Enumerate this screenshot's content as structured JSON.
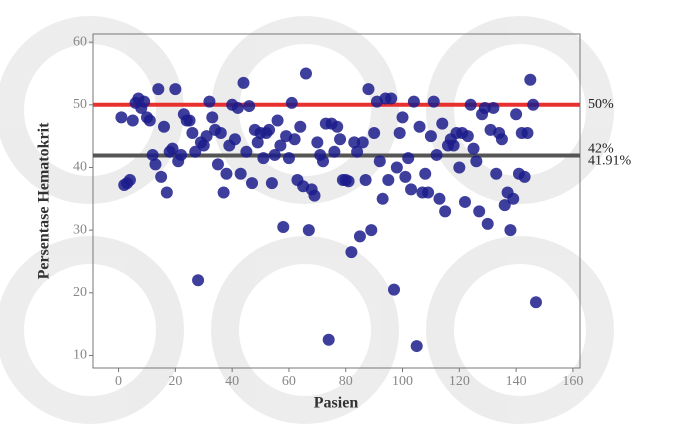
{
  "chart_data": {
    "type": "scatter",
    "xlabel": "Pasien",
    "ylabel": "Persentase Hematokrit",
    "xlim": [
      -9,
      162.5
    ],
    "ylim": [
      8,
      61.3
    ],
    "xticks": [
      0,
      20,
      40,
      60,
      80,
      100,
      120,
      140,
      160
    ],
    "yticks": [
      10,
      20,
      30,
      40,
      50,
      60
    ],
    "grid": false,
    "color": "#1c1c8c",
    "hlines": [
      {
        "value": 50,
        "labels": [
          "50%"
        ],
        "color": "#e8312f"
      },
      {
        "value": 41.91,
        "labels": [
          "42%",
          "41.91%"
        ],
        "color": "#555555"
      }
    ],
    "x": [
      1,
      2,
      3,
      4,
      5,
      6,
      7,
      8,
      9,
      10,
      11,
      12,
      13,
      14,
      15,
      16,
      17,
      18,
      19,
      20,
      21,
      22,
      23,
      24,
      25,
      26,
      27,
      28,
      29,
      30,
      31,
      32,
      33,
      34,
      35,
      36,
      37,
      38,
      39,
      40,
      41,
      42,
      43,
      44,
      45,
      46,
      47,
      48,
      49,
      50,
      51,
      52,
      53,
      54,
      55,
      56,
      57,
      58,
      59,
      60,
      61,
      62,
      63,
      64,
      65,
      66,
      67,
      68,
      69,
      70,
      71,
      72,
      73,
      74,
      75,
      76,
      77,
      78,
      79,
      80,
      81,
      82,
      83,
      84,
      85,
      86,
      87,
      88,
      89,
      90,
      91,
      92,
      93,
      94,
      95,
      96,
      97,
      98,
      99,
      100,
      101,
      102,
      103,
      104,
      105,
      106,
      107,
      108,
      109,
      110,
      111,
      112,
      113,
      114,
      115,
      116,
      117,
      118,
      119,
      120,
      121,
      122,
      123,
      124,
      125,
      126,
      127,
      128,
      129,
      130,
      131,
      132,
      133,
      134,
      135,
      136,
      137,
      138,
      139,
      140,
      141,
      142,
      143,
      144,
      145,
      146,
      147
    ],
    "values": [
      48,
      37.2,
      37.5,
      38,
      47.5,
      50.3,
      51,
      49.5,
      50.5,
      48,
      47.5,
      42,
      40.5,
      52.5,
      38.5,
      46.5,
      36,
      42.5,
      43,
      52.5,
      41,
      42,
      48.5,
      47.5,
      47.5,
      45.5,
      42.5,
      22,
      44,
      43.5,
      45,
      50.5,
      48,
      46,
      40.5,
      45.5,
      36,
      39,
      43.5,
      50,
      44.5,
      49.5,
      39,
      53.5,
      42.5,
      49.8,
      37.5,
      46,
      44,
      45.5,
      41.5,
      45.5,
      46,
      37.5,
      42,
      47.5,
      43.5,
      30.5,
      45,
      41.5,
      50.3,
      44.5,
      38,
      46.5,
      37,
      55,
      30,
      36.5,
      35.5,
      44,
      42,
      41,
      47,
      12.5,
      47,
      42.5,
      46.5,
      44.5,
      38,
      38,
      37.8,
      26.5,
      44,
      42.5,
      29,
      44,
      38,
      52.5,
      30,
      45.5,
      50.5,
      41,
      35,
      51,
      38,
      51,
      20.5,
      40,
      45.5,
      48,
      38.5,
      41.5,
      36.5,
      50.5,
      11.5,
      46.5,
      36,
      39,
      36,
      45,
      50.5,
      42,
      35,
      47,
      33,
      43.5,
      44.5,
      43.5,
      45.5,
      40,
      45.5,
      34.5,
      45,
      50,
      43,
      41,
      33,
      48.5,
      49.5,
      31,
      46,
      49.5,
      39,
      45.5,
      44.5,
      34,
      36,
      30,
      35,
      48.5,
      39,
      45.5,
      38.5,
      45.5,
      54,
      50,
      18.5
    ]
  }
}
